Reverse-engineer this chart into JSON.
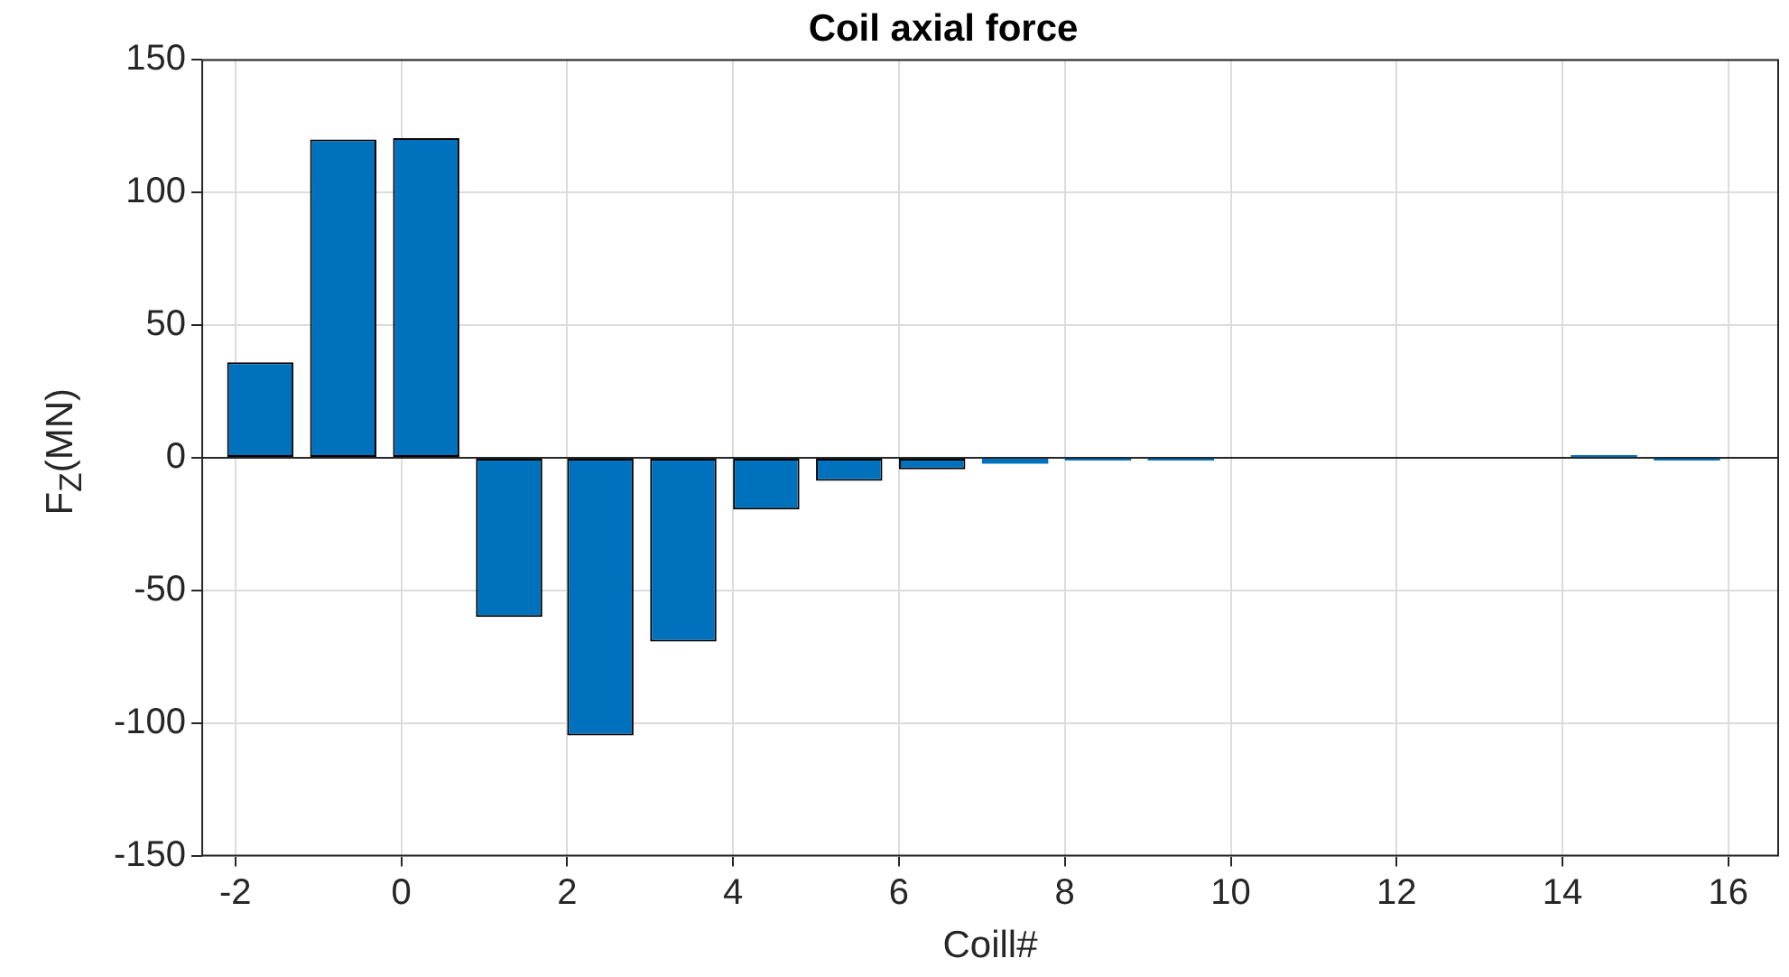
{
  "chart_data": {
    "type": "bar",
    "title": "Coil axial force",
    "xlabel": "Coill#",
    "ylabel": "F$_{Z}$(MN)",
    "x": [
      -1.7,
      -0.7,
      0.3,
      1.3,
      2.4,
      3.4,
      4.4,
      5.4,
      6.4,
      7.4,
      8.4,
      9.4,
      10.5,
      11.5,
      12.5,
      13.5,
      14.5,
      15.5
    ],
    "values": [
      36,
      120,
      120.5,
      -60,
      -104.7,
      -69.3,
      -19.5,
      -8.7,
      -4.3,
      -2.2,
      -1,
      -1,
      null,
      null,
      null,
      null,
      1,
      -1
    ],
    "color": "#0072bd",
    "xlim": [
      -2.4,
      16.6
    ],
    "xticks": [
      -2,
      0,
      2,
      4,
      6,
      8,
      10,
      12,
      14,
      16
    ],
    "ylim": [
      -150,
      150
    ],
    "yticks": [
      -150,
      -100,
      -50,
      0,
      50,
      100,
      150
    ],
    "grid": true,
    "legend": false
  }
}
